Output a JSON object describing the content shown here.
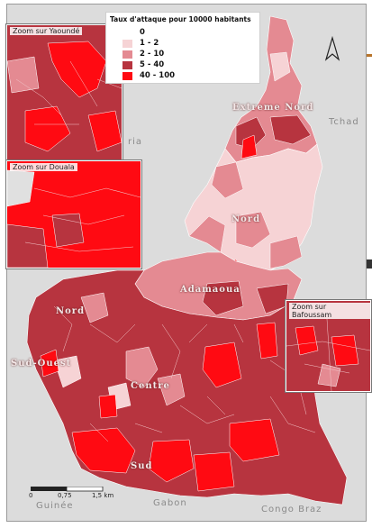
{
  "legend": {
    "title": "Taux d'attaque pour 10000 habitants",
    "items": [
      {
        "label": "0",
        "color": "#ffffff"
      },
      {
        "label": "1 - 2",
        "color": "#f6d3d5"
      },
      {
        "label": "2 - 10",
        "color": "#e48a92"
      },
      {
        "label": "5 - 40",
        "color": "#b7343f"
      },
      {
        "label": "40 - 100",
        "color": "#ff0a12"
      }
    ]
  },
  "insets": {
    "yaounde": "Zoom sur Yaoundé",
    "douala": "Zoom sur Douala",
    "bafoussam": "Zoom sur Bafoussam"
  },
  "regions": {
    "extreme_nord": "Extreme Nord",
    "nord": "Nord",
    "adamaoua": "Adamaoua",
    "nord_ouest": "Nord",
    "sud_ouest": "Sud-Ouest",
    "centre": "Centre",
    "sud": "Sud"
  },
  "countries": {
    "tchad": "Tchad",
    "nigeria": "ria",
    "gabon": "Gabon",
    "congo": "Congo Braz",
    "guinee": "Guinée"
  },
  "scale": {
    "zero": "0",
    "mid": "0,75",
    "end": "1,5 km"
  },
  "north_arrow": "north-arrow-icon"
}
